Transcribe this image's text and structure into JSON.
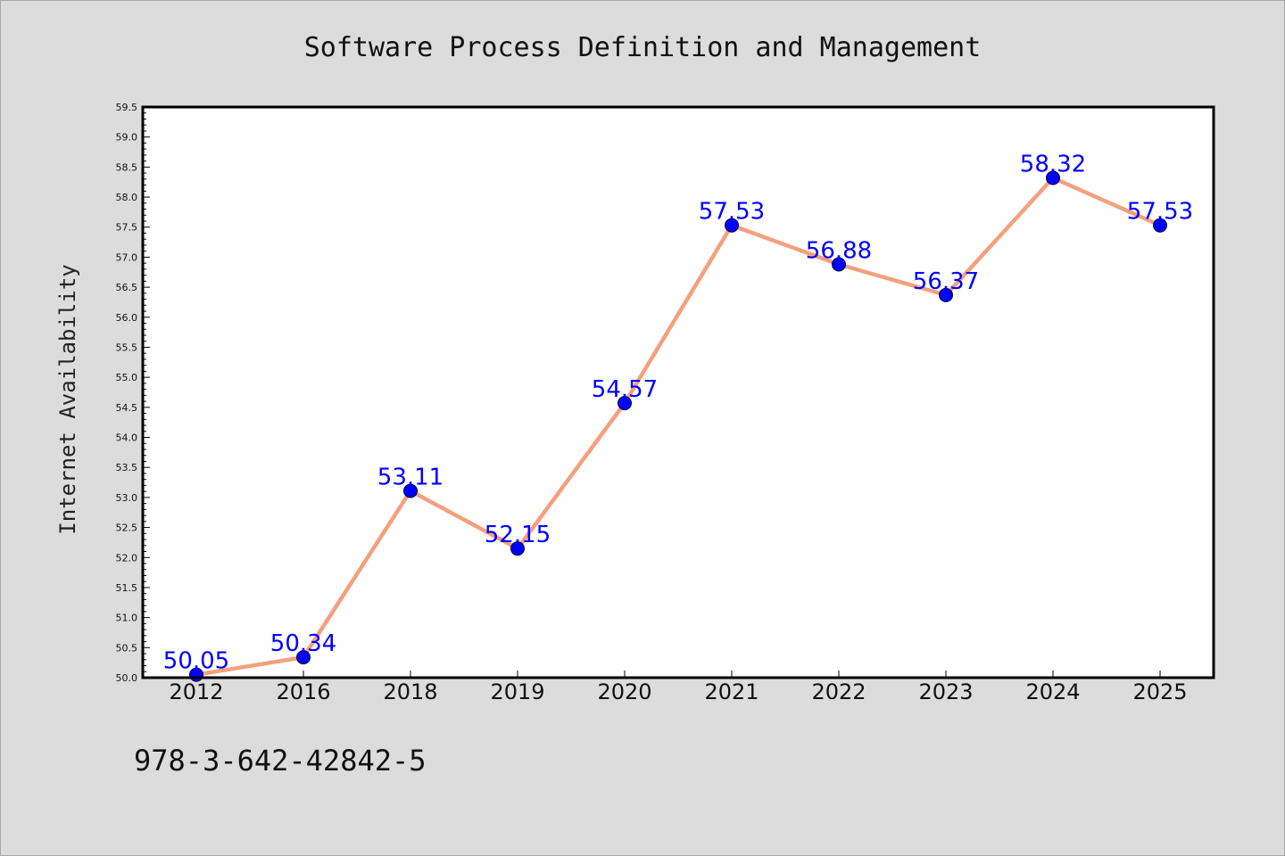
{
  "chart_data": {
    "type": "line",
    "title": "Software Process Definition and Management",
    "xlabel": "",
    "ylabel": "Internet Availability",
    "categories": [
      "2012",
      "2016",
      "2018",
      "2019",
      "2020",
      "2021",
      "2022",
      "2023",
      "2024",
      "2025"
    ],
    "series": [
      {
        "values": [
          50.05,
          50.34,
          53.11,
          52.15,
          54.57,
          57.53,
          56.88,
          56.37,
          58.32,
          57.53
        ],
        "data_labels": [
          "50.05",
          "50.34",
          "53.11",
          "52.15",
          "54.57",
          "57.53",
          "56.88",
          "56.37",
          "58.32",
          "57.53"
        ],
        "line_color": "#f4a07e",
        "marker_color": "#0000ff"
      }
    ],
    "ylim": [
      50.0,
      59.5
    ],
    "ytick_step": 0.5,
    "grid": false,
    "legend": "none"
  },
  "footnote": "978-3-642-42842-5",
  "colors": {
    "background": "#dcdcdc",
    "plot_background": "#ffffff",
    "data_label": "#0000ff"
  }
}
